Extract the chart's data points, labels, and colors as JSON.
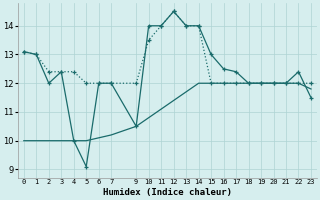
{
  "xlabel": "Humidex (Indice chaleur)",
  "x_hours": [
    0,
    1,
    2,
    3,
    4,
    5,
    6,
    7,
    9,
    10,
    11,
    12,
    13,
    14,
    15,
    16,
    17,
    18,
    19,
    20,
    21,
    22,
    23
  ],
  "line1_x": [
    0,
    1,
    2,
    3,
    4,
    5,
    6,
    7,
    9,
    10,
    11,
    12,
    13,
    14,
    15,
    16,
    17,
    18,
    19,
    20,
    21,
    22,
    23
  ],
  "line1_y": [
    13.1,
    13.0,
    12.0,
    12.4,
    10.0,
    9.1,
    12.0,
    12.0,
    10.5,
    14.0,
    14.0,
    14.5,
    14.0,
    14.0,
    13.0,
    12.5,
    12.4,
    12.0,
    12.0,
    12.0,
    12.0,
    12.4,
    11.5
  ],
  "line2_x": [
    0,
    1,
    2,
    3,
    4,
    5,
    6,
    7,
    9,
    10,
    11,
    12,
    13,
    14,
    15,
    16,
    17,
    18,
    19,
    20,
    21,
    22,
    23
  ],
  "line2_y": [
    13.1,
    13.0,
    12.4,
    12.4,
    12.4,
    12.0,
    12.0,
    12.0,
    12.0,
    13.5,
    14.0,
    14.5,
    14.0,
    14.0,
    12.0,
    12.0,
    12.0,
    12.0,
    12.0,
    12.0,
    12.0,
    12.0,
    12.0
  ],
  "line3_x": [
    0,
    1,
    2,
    3,
    4,
    5,
    6,
    7,
    9,
    10,
    11,
    12,
    13,
    14,
    15,
    16,
    17,
    18,
    19,
    20,
    21,
    22,
    23
  ],
  "line3_y": [
    10.0,
    10.0,
    10.0,
    10.0,
    10.0,
    10.0,
    10.1,
    10.2,
    10.5,
    10.8,
    11.1,
    11.4,
    11.7,
    12.0,
    12.0,
    12.0,
    12.0,
    12.0,
    12.0,
    12.0,
    12.0,
    12.0,
    11.8
  ],
  "yticks": [
    9,
    10,
    11,
    12,
    13,
    14
  ],
  "bg_color": "#d6eeee",
  "grid_color": "#aed4d4",
  "line_color": "#1a6b6b"
}
